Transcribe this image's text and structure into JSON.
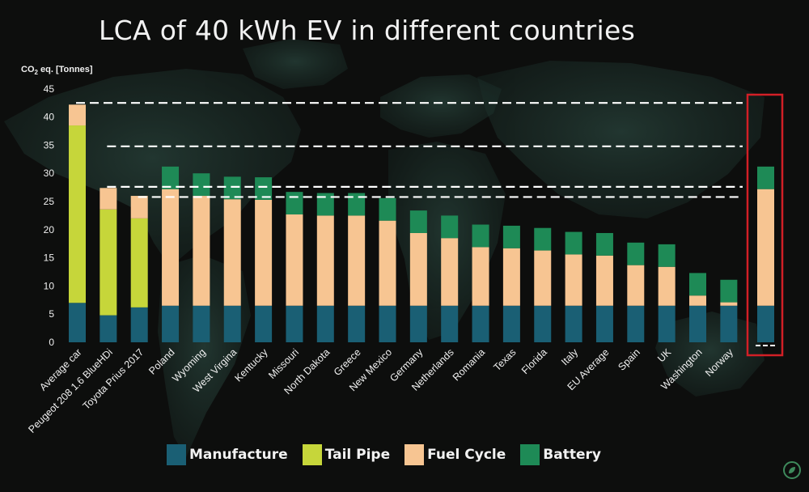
{
  "chart_data": {
    "type": "bar",
    "stacked": true,
    "title": "LCA of 40 kWh EV in different countries",
    "ylabel_prefix": "CO",
    "ylabel_sub": "2",
    "ylabel_suffix": " eq. [Tonnes]",
    "ylim": [
      0,
      45
    ],
    "yticks": [
      0,
      5,
      10,
      15,
      20,
      25,
      30,
      35,
      40,
      45
    ],
    "categories": [
      "Average car",
      "Peugeot 208 1.6 BlueHDi",
      "Toyota Prius 2017",
      "Poland",
      "Wyoming",
      "West Virgina",
      "Kentucky",
      "Missouri",
      "North Dakota",
      "Greece",
      "New Mexico",
      "Germany",
      "Netherlands",
      "Romania",
      "Texas",
      "Florida",
      "Italy",
      "EU Average",
      "Spain",
      "UK",
      "Washington",
      "Norway"
    ],
    "series": [
      {
        "name": "Manufacture",
        "color": "#1a5f74",
        "values": [
          7,
          4.8,
          6.2,
          6.5,
          6.5,
          6.5,
          6.5,
          6.5,
          6.5,
          6.5,
          6.5,
          6.5,
          6.5,
          6.5,
          6.5,
          6.5,
          6.5,
          6.5,
          6.5,
          6.5,
          6.5,
          6.5
        ]
      },
      {
        "name": "Tail Pipe",
        "color": "#c6d63a",
        "values": [
          31.5,
          18.8,
          15.8,
          0,
          0,
          0,
          0,
          0,
          0,
          0,
          0,
          0,
          0,
          0,
          0,
          0,
          0,
          0,
          0,
          0,
          0,
          0
        ]
      },
      {
        "name": "Fuel Cycle",
        "color": "#f7c592",
        "values": [
          3.7,
          3.8,
          4,
          20.7,
          19.5,
          18.9,
          18.8,
          16.2,
          16,
          16,
          15.1,
          12.9,
          12,
          10.4,
          10.2,
          9.8,
          9.1,
          8.9,
          7.2,
          6.9,
          1.8,
          0.6
        ]
      },
      {
        "name": "Battery",
        "color": "#1e8a56",
        "values": [
          0,
          0,
          0,
          4,
          4,
          4,
          4,
          4,
          4,
          4,
          4,
          4,
          4,
          4,
          4,
          4,
          4,
          4,
          4,
          4,
          4,
          4
        ]
      }
    ],
    "highlight_bar": {
      "Manufacture": 6.5,
      "Fuel Cycle": 20.7,
      "Battery": 4
    },
    "reference_lines": [
      42.5,
      34.8,
      27.6,
      25.8
    ],
    "legend_position": "bottom",
    "grid": false
  },
  "title": "LCA of 40 kWh EV in different countries",
  "legend": {
    "manufacture": "Manufacture",
    "tailpipe": "Tail Pipe",
    "fuelcycle": "Fuel Cycle",
    "battery": "Battery"
  }
}
